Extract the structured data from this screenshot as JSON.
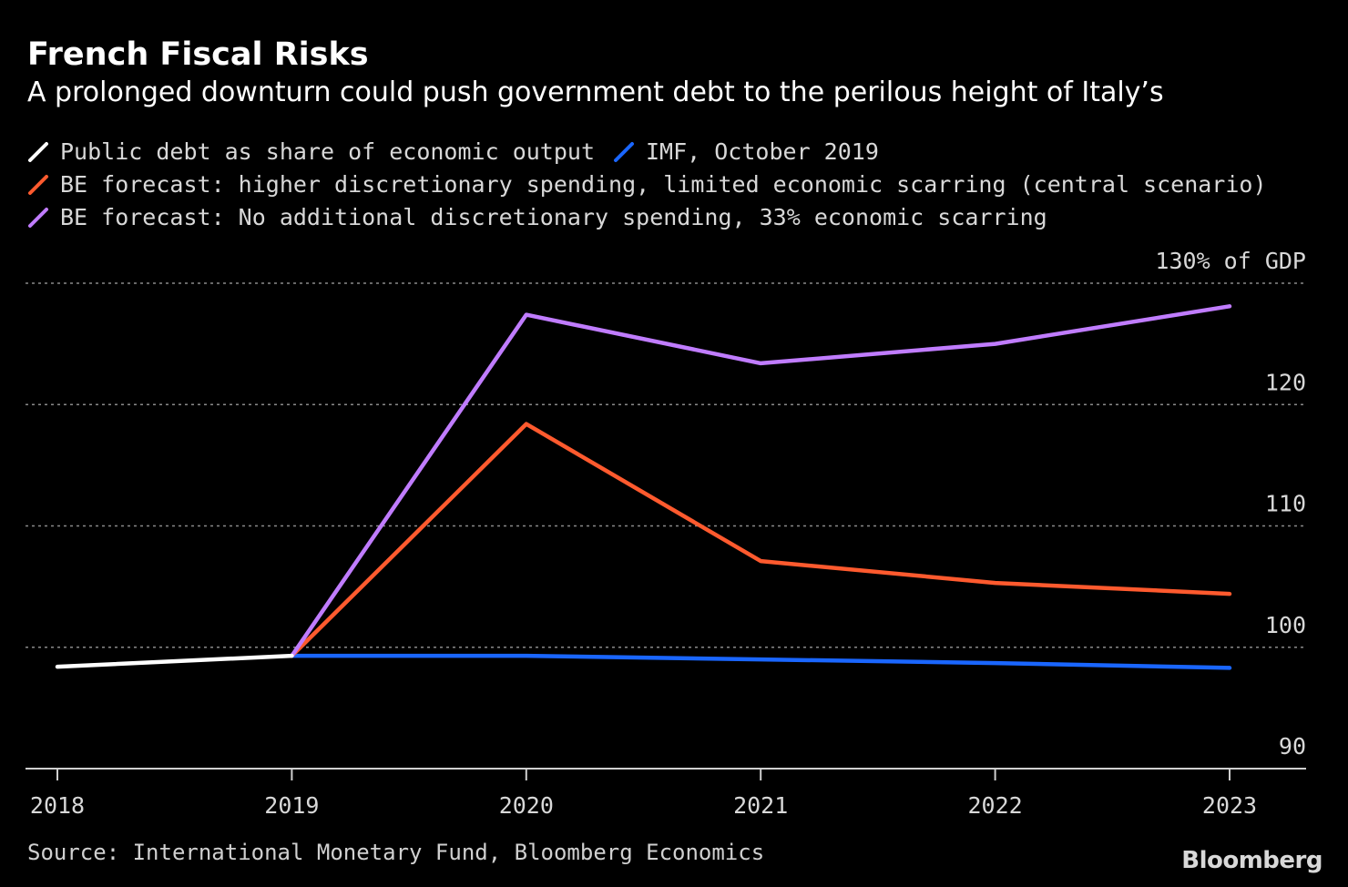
{
  "title": "French Fiscal Risks",
  "subtitle": "A prolonged downturn could push government debt to the perilous height of Italy’s",
  "source": "Source: International Monetary Fund, Bloomberg Economics",
  "brand": "Bloomberg",
  "legend": [
    {
      "label": "Public debt as share of economic output",
      "color": "#ffffff"
    },
    {
      "label": "IMF, October 2019",
      "color": "#1a66ff"
    },
    {
      "label": "BE forecast: higher discretionary spending, limited economic scarring (central scenario)",
      "color": "#ff5a2e"
    },
    {
      "label": "BE forecast: No additional discretionary spending, 33% economic scarring",
      "color": "#c07cff"
    }
  ],
  "chart_data": {
    "type": "line",
    "x": [
      2018,
      2019,
      2020,
      2021,
      2022,
      2023
    ],
    "xticks": [
      "2018",
      "2019",
      "2020",
      "2021",
      "2022",
      "2023"
    ],
    "yticks": [
      "90",
      "100",
      "110",
      "120",
      "130% of GDP"
    ],
    "ylim": [
      90,
      130
    ],
    "grid": true,
    "legend_position": "top-left",
    "series": [
      {
        "name": "Public debt as share of economic output",
        "color": "#ffffff",
        "x": [
          2018,
          2019
        ],
        "values": [
          98.4,
          99.3
        ]
      },
      {
        "name": "IMF, October 2019",
        "color": "#1a66ff",
        "x": [
          2019,
          2020,
          2021,
          2022,
          2023
        ],
        "values": [
          99.3,
          99.3,
          99.0,
          98.7,
          98.3
        ]
      },
      {
        "name": "BE forecast: higher discretionary spending, limited economic scarring (central scenario)",
        "color": "#ff5a2e",
        "x": [
          2019,
          2020,
          2021,
          2022,
          2023
        ],
        "values": [
          99.3,
          118.4,
          107.1,
          105.3,
          104.4
        ]
      },
      {
        "name": "BE forecast: No additional discretionary spending, 33% economic scarring",
        "color": "#c07cff",
        "x": [
          2019,
          2020,
          2021,
          2022,
          2023
        ],
        "values": [
          99.3,
          127.4,
          123.4,
          125.0,
          128.1
        ]
      }
    ]
  }
}
